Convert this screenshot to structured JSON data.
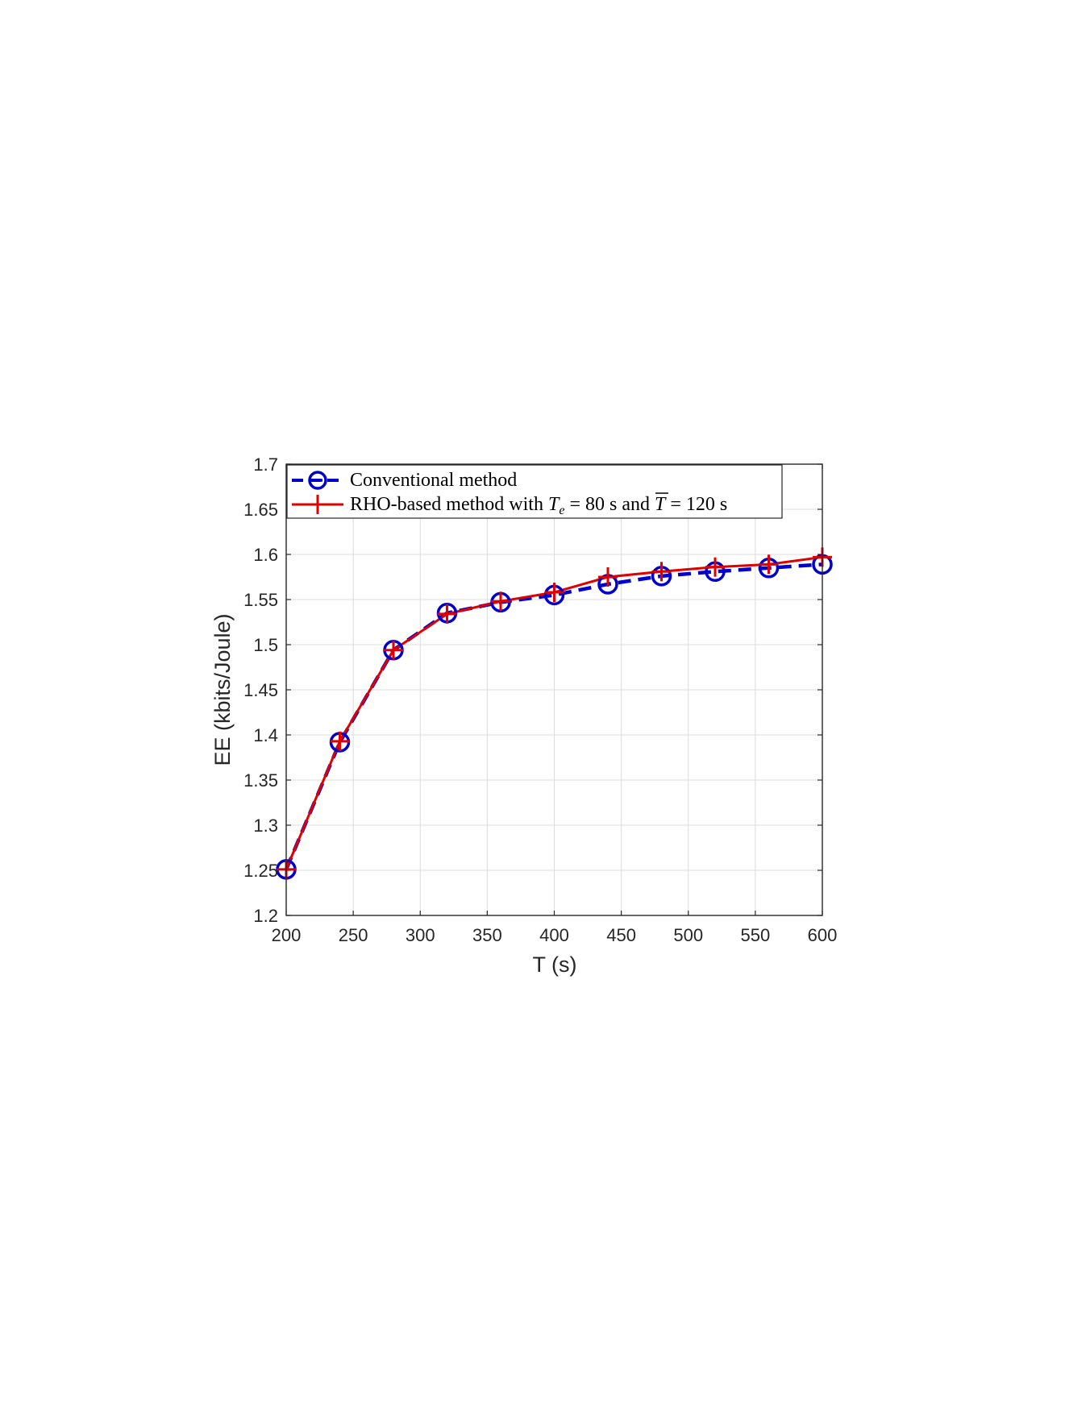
{
  "chart_data": {
    "type": "line",
    "xlabel": "T (s)",
    "ylabel": "EE (kbits/Joule)",
    "xlim": [
      200,
      600
    ],
    "ylim": [
      1.2,
      1.7
    ],
    "xticks": [
      "200",
      "250",
      "300",
      "350",
      "400",
      "450",
      "500",
      "550",
      "600"
    ],
    "yticks": [
      "1.2",
      "1.25",
      "1.3",
      "1.35",
      "1.4",
      "1.45",
      "1.5",
      "1.55",
      "1.6",
      "1.65",
      "1.7"
    ],
    "grid": true,
    "legend_position": "top-left",
    "x": [
      200,
      240,
      280,
      320,
      360,
      400,
      440,
      480,
      520,
      560,
      600
    ],
    "series": [
      {
        "name": "Conventional method",
        "color": "#0000cc",
        "line_style": "dashed",
        "marker": "circle",
        "values": [
          1.251,
          1.392,
          1.494,
          1.535,
          1.547,
          1.555,
          1.567,
          1.576,
          1.581,
          1.585,
          1.589
        ]
      },
      {
        "name": "RHO-based method with T_e = 80 s and T̄ = 120 s",
        "color": "#e00000",
        "line_style": "solid",
        "marker": "plus",
        "values": [
          1.251,
          1.393,
          1.494,
          1.534,
          1.548,
          1.558,
          1.575,
          1.581,
          1.586,
          1.589,
          1.597
        ]
      }
    ],
    "legend": {
      "entry_1": "Conventional method",
      "entry_2_prefix": "RHO-based method with ",
      "entry_2_var1": "T",
      "entry_2_sub": "e",
      "entry_2_mid": " = 80 s and ",
      "entry_2_var2": "T",
      "entry_2_suffix": " = 120 s"
    }
  }
}
